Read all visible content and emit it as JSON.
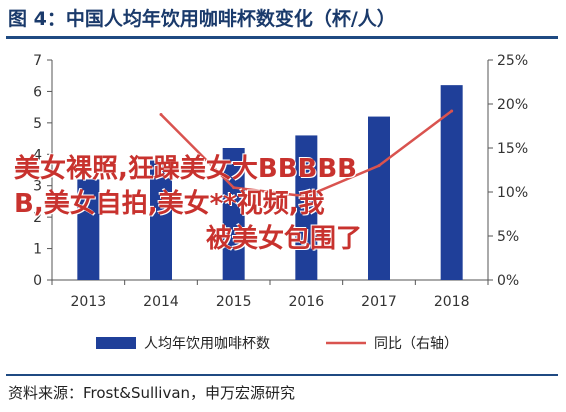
{
  "figure": {
    "title": "图 4：中国人均年饮用咖啡杯数变化（杯/人）",
    "source": "资料来源：Frost&Sullivan，申万宏源研究"
  },
  "overlay_text": {
    "line1": "美女裸照,狂躁美女大BBBBB",
    "line2": "B,美女自拍,美女**视频,我",
    "line3": "被美女包围了"
  },
  "chart_data": {
    "type": "bar",
    "categories": [
      "2013",
      "2014",
      "2015",
      "2016",
      "2017",
      "2018"
    ],
    "series": [
      {
        "name": "人均年饮用咖啡杯数",
        "type": "bar",
        "axis": "left",
        "values": [
          3.2,
          3.8,
          4.2,
          4.6,
          5.2,
          6.2
        ],
        "color": "#1f3f99"
      },
      {
        "name": "同比（右轴）",
        "type": "line",
        "axis": "right",
        "values": [
          null,
          18.8,
          10.5,
          9.5,
          13.0,
          19.2
        ],
        "color": "#d9534f"
      }
    ],
    "ylim_left": [
      0,
      7
    ],
    "yticks_left": [
      "0",
      "1",
      "2",
      "3",
      "4",
      "5",
      "6",
      "7"
    ],
    "ylim_right": [
      0,
      25
    ],
    "yticks_right": [
      "0%",
      "5%",
      "10%",
      "15%",
      "20%",
      "25%"
    ],
    "legend_position": "bottom",
    "grid": false
  }
}
